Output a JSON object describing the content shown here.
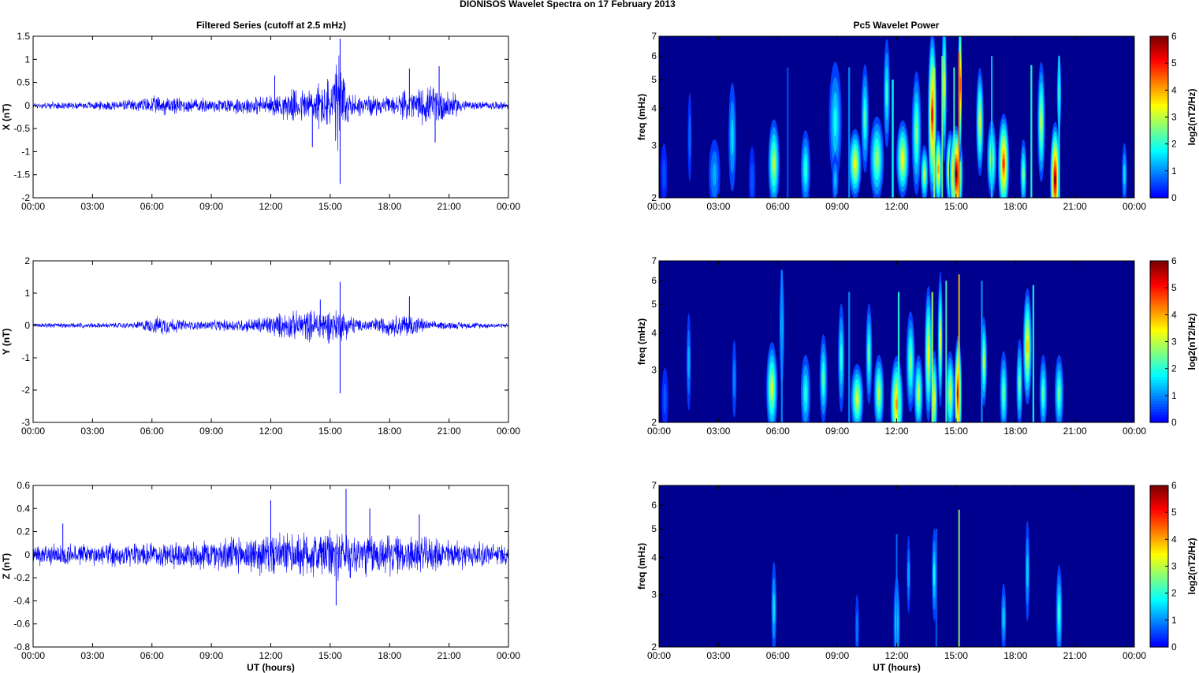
{
  "page": {
    "title": "DIONISOS Wavelet Spectra on 17 February  2013",
    "left_column_title": "Filtered Series (cutoff at 2.5 mHz)",
    "right_column_title": "Pc5 Wavelet Power"
  },
  "colors": {
    "series_line": "#0000ff",
    "spectrogram_background": "#00008f",
    "axis": "#000000"
  },
  "chart_data": [
    {
      "type": "line",
      "id": "x_series",
      "ylabel": "X (nT)",
      "xlabel": "",
      "xlim": [
        0,
        24
      ],
      "ylim": [
        -2,
        1.5
      ],
      "yticks": [
        "-2",
        "-1.5",
        "-1",
        "-0.5",
        "0",
        "0.5",
        "1",
        "1.5"
      ],
      "ytick_values": [
        -2,
        -1.5,
        -1,
        -0.5,
        0,
        0.5,
        1,
        1.5
      ],
      "xticks": [
        "00:00",
        "03:00",
        "06:00",
        "09:00",
        "12:00",
        "15:00",
        "18:00",
        "21:00",
        "00:00"
      ],
      "amplitude_profile": [
        [
          0,
          0.08
        ],
        [
          2,
          0.08
        ],
        [
          5,
          0.15
        ],
        [
          6.5,
          0.25
        ],
        [
          8,
          0.18
        ],
        [
          10,
          0.2
        ],
        [
          12,
          0.25
        ],
        [
          14,
          0.5
        ],
        [
          15,
          0.7
        ],
        [
          15.5,
          1.4
        ],
        [
          16,
          0.3
        ],
        [
          18,
          0.2
        ],
        [
          19,
          0.4
        ],
        [
          20.5,
          0.5
        ],
        [
          22,
          0.1
        ],
        [
          24,
          0.1
        ]
      ],
      "spikes": [
        [
          15.5,
          1.45
        ],
        [
          15.5,
          -1.7
        ],
        [
          14.1,
          -0.9
        ],
        [
          19,
          0.8
        ],
        [
          20.3,
          -0.8
        ],
        [
          20.5,
          0.85
        ],
        [
          12.2,
          0.65
        ]
      ]
    },
    {
      "type": "line",
      "id": "y_series",
      "ylabel": "Y (nT)",
      "xlabel": "",
      "xlim": [
        0,
        24
      ],
      "ylim": [
        -3,
        2
      ],
      "yticks": [
        "-3",
        "-2",
        "-1",
        "0",
        "1",
        "2"
      ],
      "ytick_values": [
        -3,
        -2,
        -1,
        0,
        1,
        2
      ],
      "xticks": [
        "00:00",
        "03:00",
        "06:00",
        "09:00",
        "12:00",
        "15:00",
        "18:00",
        "21:00",
        "00:00"
      ],
      "amplitude_profile": [
        [
          0,
          0.08
        ],
        [
          5,
          0.1
        ],
        [
          6.5,
          0.35
        ],
        [
          8,
          0.15
        ],
        [
          11,
          0.25
        ],
        [
          12.5,
          0.45
        ],
        [
          14.5,
          0.6
        ],
        [
          15.5,
          0.6
        ],
        [
          16.5,
          0.2
        ],
        [
          19,
          0.45
        ],
        [
          20,
          0.15
        ],
        [
          24,
          0.08
        ]
      ],
      "spikes": [
        [
          15.5,
          1.35
        ],
        [
          15.5,
          -2.1
        ],
        [
          14.5,
          0.8
        ],
        [
          19,
          0.9
        ]
      ]
    },
    {
      "type": "line",
      "id": "z_series",
      "ylabel": "Z (nT)",
      "xlabel": "UT (hours)",
      "xlim": [
        0,
        24
      ],
      "ylim": [
        -0.8,
        0.6
      ],
      "yticks": [
        "-0.8",
        "-0.6",
        "-0.4",
        "-0.2",
        "0",
        "0.2",
        "0.4",
        "0.6"
      ],
      "ytick_values": [
        -0.8,
        -0.6,
        -0.4,
        -0.2,
        0,
        0.2,
        0.4,
        0.6
      ],
      "xticks": [
        "00:00",
        "03:00",
        "06:00",
        "09:00",
        "12:00",
        "15:00",
        "18:00",
        "21:00",
        "00:00"
      ],
      "amplitude_profile": [
        [
          0,
          0.1
        ],
        [
          6,
          0.12
        ],
        [
          12,
          0.2
        ],
        [
          15,
          0.25
        ],
        [
          18,
          0.2
        ],
        [
          21,
          0.15
        ],
        [
          24,
          0.1
        ]
      ],
      "spikes": [
        [
          15.8,
          0.57
        ],
        [
          15.3,
          -0.44
        ],
        [
          12,
          0.47
        ],
        [
          17,
          0.4
        ],
        [
          19.5,
          0.35
        ],
        [
          1.5,
          0.27
        ]
      ]
    },
    {
      "type": "heatmap",
      "id": "x_wavelet",
      "ylabel": "freq (mHz)",
      "xlabel": "",
      "colorbar_label": "log2(nT2/Hz)",
      "clim": [
        0,
        6
      ],
      "colorbar_ticks": [
        "0",
        "1",
        "2",
        "3",
        "4",
        "5",
        "6"
      ],
      "xlim": [
        0,
        24
      ],
      "ylim": [
        2,
        7
      ],
      "yscale": "log",
      "yticks": [
        "2",
        "3",
        "4",
        "5",
        "6",
        "7"
      ],
      "ytick_values": [
        2,
        3,
        4,
        5,
        6,
        7
      ],
      "xticks": [
        "00:00",
        "03:00",
        "06:00",
        "09:00",
        "12:00",
        "15:00",
        "18:00",
        "21:00",
        "00:00"
      ],
      "blobs": [
        [
          0.25,
          2.4,
          1.6,
          0.1,
          0.55
        ],
        [
          1.55,
          3.2,
          2.3,
          0.06,
          0.7
        ],
        [
          2.8,
          2.4,
          1.8,
          0.18,
          1.2
        ],
        [
          3.7,
          3.2,
          2.8,
          0.12,
          1.5
        ],
        [
          4.7,
          2.3,
          1.7,
          0.1,
          0.6
        ],
        [
          5.8,
          2.6,
          2.3,
          0.18,
          3.0
        ],
        [
          7.4,
          2.5,
          2.0,
          0.15,
          2.1
        ],
        [
          8.9,
          3.6,
          3.1,
          0.2,
          1.8
        ],
        [
          8.9,
          2.3,
          1.3,
          0.1,
          1.3
        ],
        [
          9.9,
          2.6,
          1.8,
          0.2,
          3.5
        ],
        [
          10.4,
          3.7,
          2.8,
          0.12,
          2.2
        ],
        [
          11.0,
          2.7,
          2.2,
          0.22,
          2.8
        ],
        [
          11.5,
          4.5,
          2.8,
          0.1,
          2.0
        ],
        [
          12.3,
          2.7,
          2.0,
          0.2,
          3.5
        ],
        [
          13.0,
          3.3,
          3.2,
          0.15,
          2.6
        ],
        [
          13.4,
          2.4,
          1.5,
          0.12,
          3.0
        ],
        [
          13.8,
          3.8,
          4.4,
          0.14,
          5.0
        ],
        [
          14.1,
          2.5,
          2.0,
          0.12,
          4.0
        ],
        [
          14.4,
          4.8,
          4.0,
          0.08,
          3.0
        ],
        [
          14.7,
          2.5,
          2.0,
          0.14,
          4.2
        ],
        [
          15.0,
          2.4,
          2.5,
          0.22,
          6.0
        ],
        [
          15.2,
          4.8,
          4.0,
          0.06,
          4.5
        ],
        [
          16.2,
          3.6,
          2.8,
          0.12,
          3.2
        ],
        [
          16.8,
          2.7,
          2.0,
          0.15,
          3.0
        ],
        [
          17.4,
          2.6,
          2.6,
          0.18,
          4.8
        ],
        [
          18.4,
          2.4,
          1.8,
          0.1,
          2.5
        ],
        [
          19.3,
          3.6,
          3.1,
          0.12,
          3.0
        ],
        [
          20.0,
          2.3,
          3.0,
          0.16,
          5.8
        ],
        [
          20.2,
          4.5,
          2.0,
          0.07,
          2.5
        ],
        [
          23.5,
          2.4,
          1.6,
          0.08,
          1.5
        ]
      ],
      "streaks": [
        [
          6.5,
          5.5,
          0.05,
          0.6
        ],
        [
          9.6,
          5.5,
          0.06,
          1.0
        ],
        [
          11.8,
          5.0,
          0.07,
          1.8
        ],
        [
          13.9,
          5.5,
          0.06,
          2.8
        ],
        [
          14.3,
          6.0,
          0.05,
          2.5
        ],
        [
          14.9,
          5.5,
          0.05,
          2.2
        ],
        [
          15.15,
          6.2,
          0.05,
          4.5
        ],
        [
          16.8,
          6.0,
          0.05,
          1.5
        ],
        [
          18.8,
          5.6,
          0.06,
          2.0
        ],
        [
          20.2,
          6.0,
          0.06,
          1.6
        ]
      ]
    },
    {
      "type": "heatmap",
      "id": "y_wavelet",
      "ylabel": "freq (mHz)",
      "xlabel": "",
      "colorbar_label": "log2(nT2/Hz)",
      "clim": [
        0,
        6
      ],
      "colorbar_ticks": [
        "0",
        "1",
        "2",
        "3",
        "4",
        "5",
        "6"
      ],
      "xlim": [
        0,
        24
      ],
      "ylim": [
        2,
        7
      ],
      "yscale": "log",
      "yticks": [
        "2",
        "3",
        "4",
        "5",
        "6",
        "7"
      ],
      "ytick_values": [
        2,
        3,
        4,
        5,
        6,
        7
      ],
      "xticks": [
        "00:00",
        "03:00",
        "06:00",
        "09:00",
        "12:00",
        "15:00",
        "18:00",
        "21:00",
        "00:00"
      ],
      "blobs": [
        [
          0.3,
          2.4,
          1.6,
          0.1,
          0.6
        ],
        [
          1.5,
          3.2,
          2.5,
          0.07,
          1.2
        ],
        [
          3.8,
          2.8,
          2.0,
          0.07,
          0.9
        ],
        [
          5.7,
          2.6,
          2.4,
          0.18,
          3.2
        ],
        [
          6.2,
          4.2,
          3.0,
          0.08,
          1.6
        ],
        [
          7.4,
          2.5,
          2.0,
          0.15,
          2.0
        ],
        [
          8.3,
          2.8,
          2.3,
          0.12,
          2.3
        ],
        [
          9.2,
          3.3,
          2.8,
          0.1,
          2.0
        ],
        [
          10.0,
          2.4,
          1.8,
          0.2,
          3.2
        ],
        [
          10.6,
          3.4,
          2.6,
          0.1,
          2.3
        ],
        [
          11.1,
          2.5,
          2.0,
          0.16,
          3.0
        ],
        [
          12.0,
          2.3,
          2.5,
          0.2,
          4.2
        ],
        [
          12.7,
          3.2,
          2.6,
          0.14,
          2.6
        ],
        [
          13.1,
          2.5,
          2.0,
          0.14,
          3.0
        ],
        [
          13.6,
          3.4,
          3.5,
          0.12,
          3.5
        ],
        [
          13.9,
          2.4,
          2.5,
          0.1,
          3.2
        ],
        [
          14.2,
          3.8,
          3.5,
          0.08,
          3.2
        ],
        [
          14.7,
          2.5,
          2.2,
          0.14,
          3.2
        ],
        [
          15.1,
          2.5,
          3.0,
          0.12,
          5.5
        ],
        [
          16.4,
          3.2,
          2.3,
          0.1,
          3.0
        ],
        [
          17.4,
          2.5,
          2.2,
          0.12,
          2.4
        ],
        [
          18.2,
          2.7,
          2.3,
          0.1,
          2.4
        ],
        [
          18.6,
          3.6,
          3.0,
          0.14,
          3.8
        ],
        [
          19.4,
          2.5,
          2.0,
          0.12,
          2.3
        ],
        [
          20.2,
          2.5,
          2.0,
          0.14,
          2.4
        ]
      ],
      "streaks": [
        [
          6.2,
          6.5,
          0.06,
          1.0
        ],
        [
          9.6,
          5.5,
          0.06,
          1.0
        ],
        [
          12.1,
          5.5,
          0.06,
          2.0
        ],
        [
          13.8,
          5.5,
          0.06,
          2.8
        ],
        [
          14.5,
          6.0,
          0.05,
          2.2
        ],
        [
          15.15,
          6.3,
          0.05,
          3.8
        ],
        [
          16.3,
          6.0,
          0.05,
          1.2
        ],
        [
          18.9,
          5.8,
          0.06,
          1.8
        ]
      ]
    },
    {
      "type": "heatmap",
      "id": "z_wavelet",
      "ylabel": "freq (mHz)",
      "xlabel": "UT (hours)",
      "colorbar_label": "log2(nT2/Hz)",
      "clim": [
        0,
        6
      ],
      "colorbar_ticks": [
        "0",
        "1",
        "2",
        "3",
        "4",
        "5",
        "6"
      ],
      "xlim": [
        0,
        24
      ],
      "ylim": [
        2,
        7
      ],
      "yscale": "log",
      "yticks": [
        "2",
        "3",
        "4",
        "5",
        "6",
        "7"
      ],
      "ytick_values": [
        2,
        3,
        4,
        5,
        6,
        7
      ],
      "xticks": [
        "00:00",
        "03:00",
        "06:00",
        "09:00",
        "12:00",
        "15:00",
        "18:00",
        "21:00",
        "00:00"
      ],
      "blobs": [
        [
          5.8,
          2.7,
          2.4,
          0.08,
          1.5
        ],
        [
          10.0,
          2.3,
          1.8,
          0.06,
          0.8
        ],
        [
          12.0,
          2.4,
          2.5,
          0.1,
          2.0
        ],
        [
          12.6,
          3.5,
          2.0,
          0.06,
          1.1
        ],
        [
          13.9,
          3.5,
          2.4,
          0.08,
          1.8
        ],
        [
          17.4,
          2.5,
          1.8,
          0.08,
          1.4
        ],
        [
          18.6,
          3.6,
          2.6,
          0.07,
          1.4
        ],
        [
          20.2,
          2.6,
          2.5,
          0.1,
          2.1
        ]
      ],
      "streaks": [
        [
          15.15,
          5.8,
          0.05,
          2.8
        ],
        [
          12.0,
          4.8,
          0.05,
          0.8
        ],
        [
          14.0,
          5.0,
          0.05,
          0.7
        ]
      ]
    }
  ]
}
